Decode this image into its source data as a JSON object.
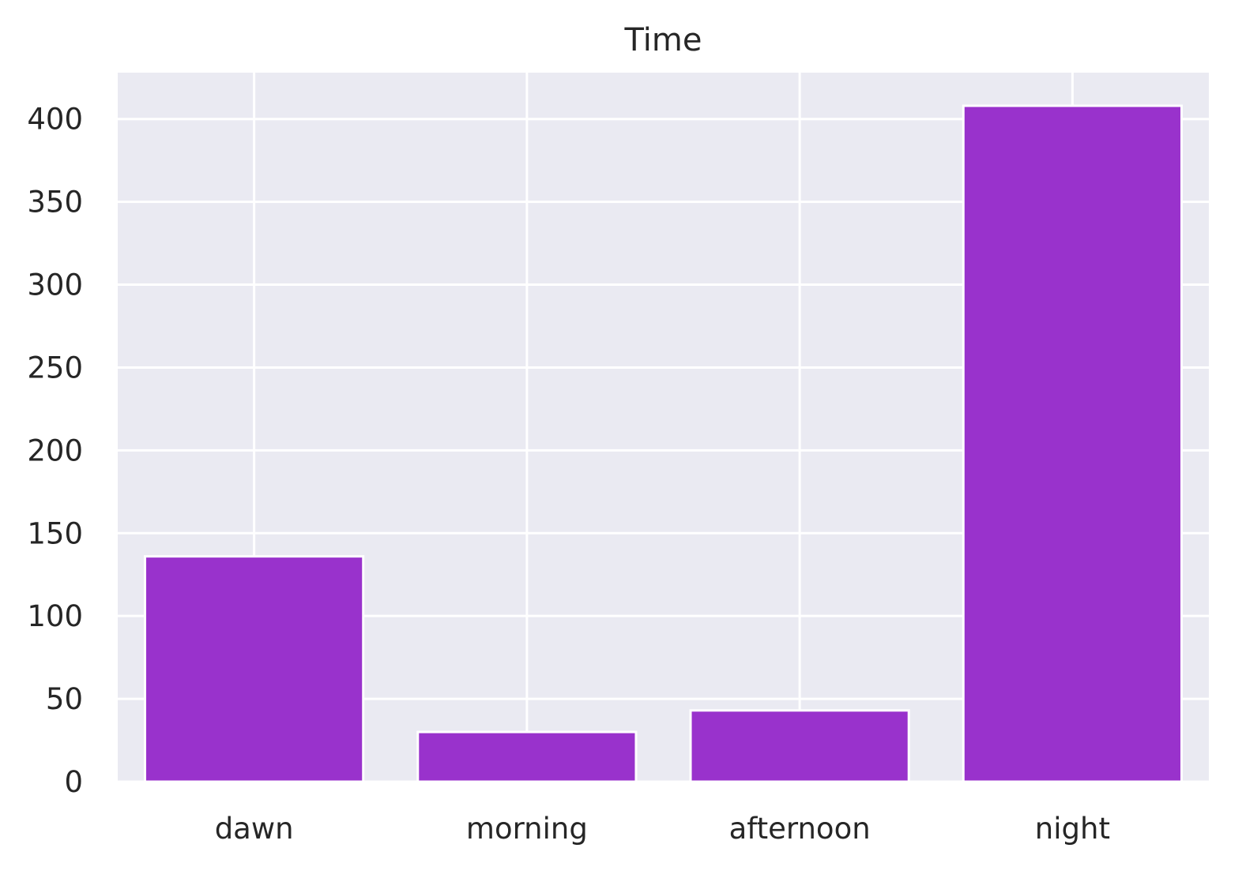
{
  "chart_data": {
    "type": "bar",
    "title": "Time",
    "xlabel": "",
    "ylabel": "",
    "categories": [
      "dawn",
      "morning",
      "afternoon",
      "night"
    ],
    "values": [
      136,
      30,
      43,
      408
    ],
    "ylim": [
      0,
      428
    ],
    "yticks": [
      0,
      50,
      100,
      150,
      200,
      250,
      300,
      350,
      400
    ],
    "grid": true,
    "legend": "none",
    "colors": {
      "bar": "#9932CC",
      "plot_background": "#EAEAF2",
      "grid": "#FFFFFF",
      "text": "#262626"
    }
  }
}
